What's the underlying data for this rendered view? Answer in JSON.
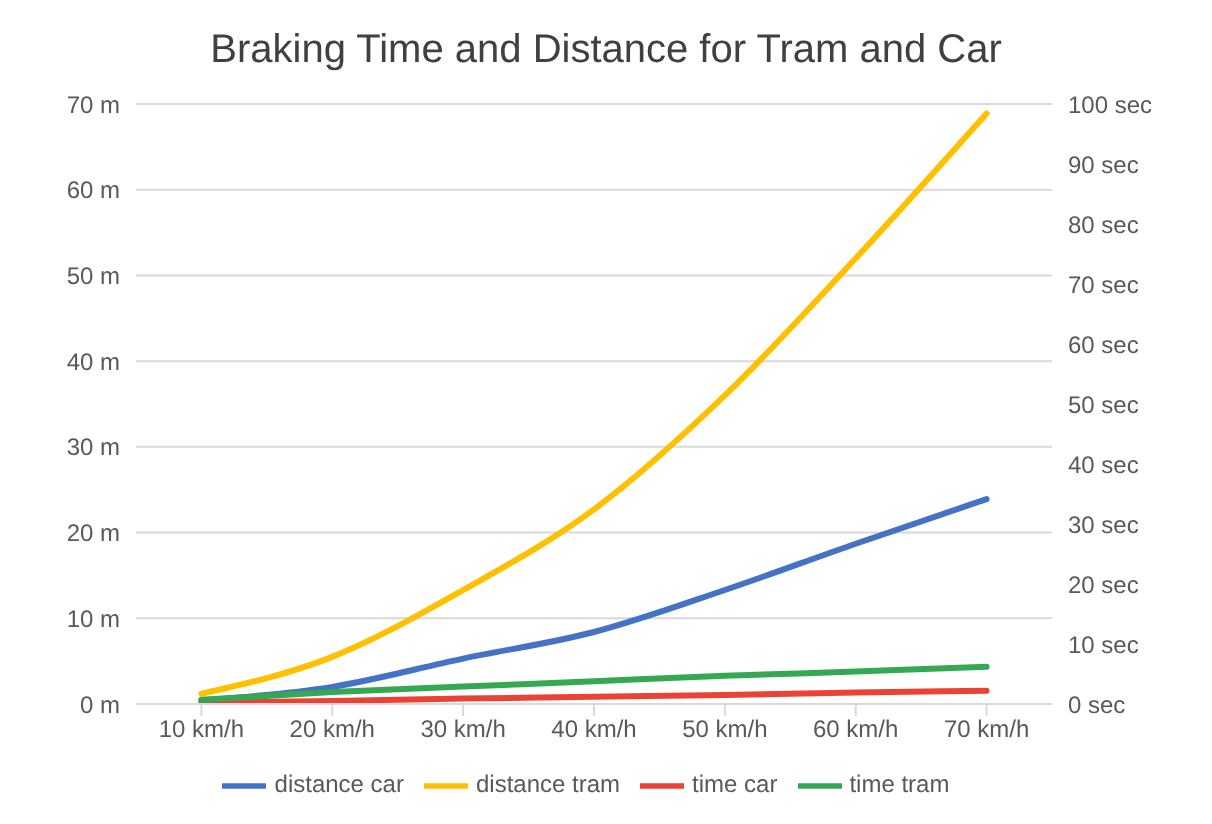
{
  "chart_data": {
    "type": "line",
    "title": "Braking Time and Distance for Tram and Car",
    "categories": [
      "10 km/h",
      "20 km/h",
      "30 km/h",
      "40 km/h",
      "50 km/h",
      "60 km/h",
      "70 km/h"
    ],
    "series": [
      {
        "name": "distance car",
        "color": "#4472c4",
        "values": [
          0.4,
          2.0,
          5.3,
          8.4,
          13.3,
          18.7,
          23.9
        ]
      },
      {
        "name": "distance tram",
        "color": "#ffc000",
        "values": [
          1.2,
          5.5,
          13.3,
          22.7,
          36,
          52,
          68.9
        ]
      },
      {
        "name": "time car",
        "color": "#ea4335",
        "axis": "y2",
        "values": [
          0.2,
          0.5,
          0.9,
          1.2,
          1.5,
          1.9,
          2.2
        ]
      },
      {
        "name": "time tram",
        "color": "#34a853",
        "axis": "y2",
        "values": [
          0.7,
          2.0,
          2.9,
          3.8,
          4.7,
          5.4,
          6.2
        ]
      }
    ],
    "ylim": [
      0,
      70
    ],
    "yticks": [
      {
        "value": 0,
        "label": "0 m"
      },
      {
        "value": 10,
        "label": "10 m"
      },
      {
        "value": 20,
        "label": "20 m"
      },
      {
        "value": 30,
        "label": "30 m"
      },
      {
        "value": 40,
        "label": "40 m"
      },
      {
        "value": 50,
        "label": "50 m"
      },
      {
        "value": 60,
        "label": "60 m"
      },
      {
        "value": 70,
        "label": "70 m"
      }
    ],
    "y2lim": [
      0,
      100
    ],
    "y2ticks": [
      {
        "value": 0,
        "label": "0 sec"
      },
      {
        "value": 10,
        "label": "10 sec"
      },
      {
        "value": 20,
        "label": "20 sec"
      },
      {
        "value": 30,
        "label": "30 sec"
      },
      {
        "value": 40,
        "label": "40 sec"
      },
      {
        "value": 50,
        "label": "50 sec"
      },
      {
        "value": 60,
        "label": "60 sec"
      },
      {
        "value": 70,
        "label": "70 sec"
      },
      {
        "value": 80,
        "label": "80 sec"
      },
      {
        "value": 90,
        "label": "90 sec"
      },
      {
        "value": 100,
        "label": "100 sec"
      }
    ],
    "grid": "y",
    "legend": "bottom",
    "marker": "none",
    "line_style": "solid"
  }
}
